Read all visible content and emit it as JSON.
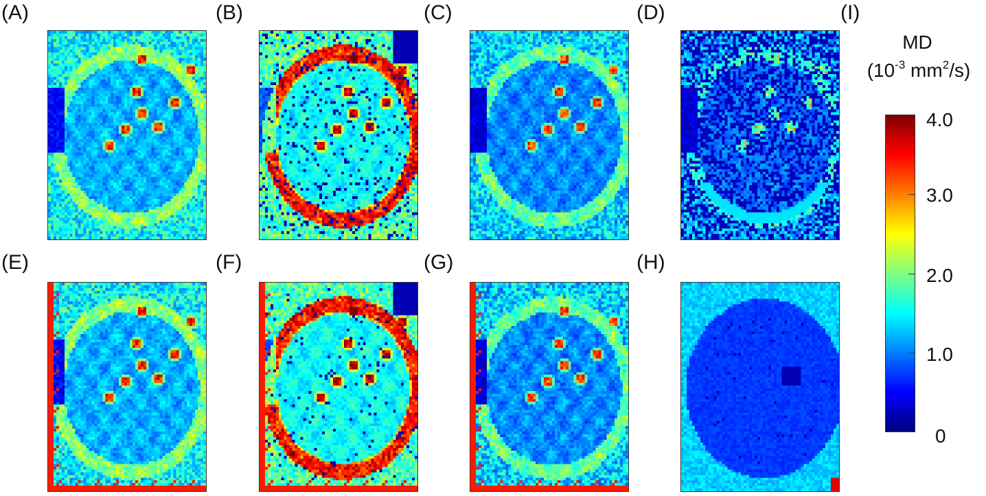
{
  "panels": [
    {
      "label": "(A)",
      "mode": "a"
    },
    {
      "label": "(B)",
      "mode": "b"
    },
    {
      "label": "(C)",
      "mode": "c"
    },
    {
      "label": "(D)",
      "mode": "d"
    },
    {
      "label": "(E)",
      "mode": "e"
    },
    {
      "label": "(F)",
      "mode": "f"
    },
    {
      "label": "(G)",
      "mode": "g"
    },
    {
      "label": "(H)",
      "mode": "h"
    }
  ],
  "colorbar": {
    "label": "(I)",
    "title_line1": "MD",
    "unit_base": "(10",
    "unit_exp": "-3",
    "unit_mid": " mm",
    "unit_exp2": "2",
    "unit_end": "/s)",
    "ticks": [
      "4.0",
      "3.0",
      "2.0",
      "1.0",
      "0"
    ],
    "range": [
      0,
      4.0
    ],
    "colormap": "jet"
  }
}
